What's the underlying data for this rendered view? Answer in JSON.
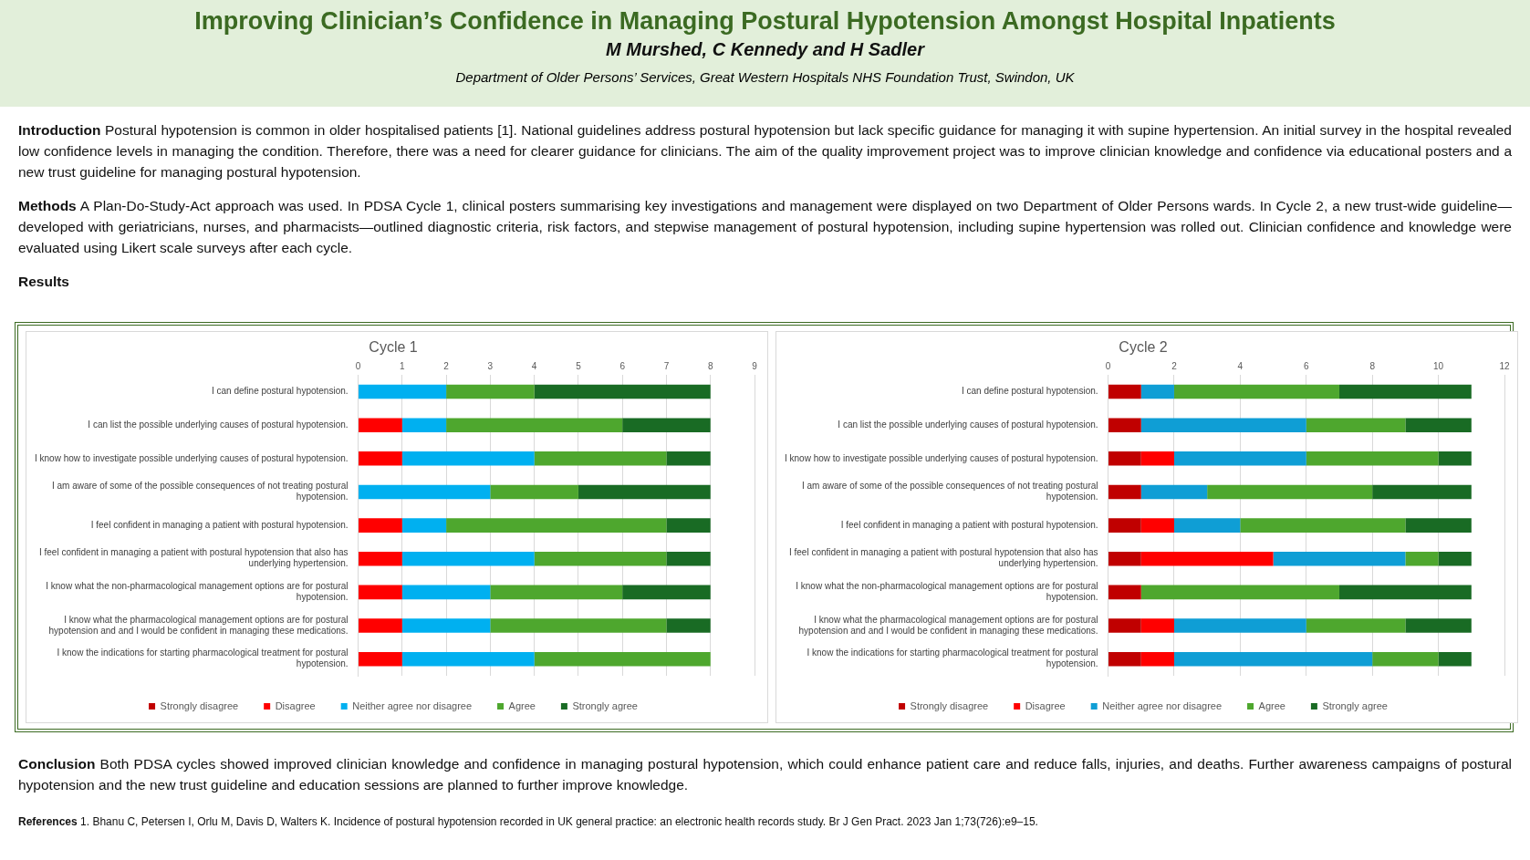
{
  "chart_data": [
    {
      "type": "other",
      "title": "Improving Clinician’s Confidence in Managing Postural Hypotension Amongst Hospital Inpatients",
      "subtitle": "M Murshed, C Kennedy and H Sadler",
      "annotations": [
        "Department of Older Persons’ Services, Great Western Hospitals NHS Foundation Trust, Swindon, UK",
        "Introduction Postural hypotension is common in older hospitalised patients [1]. National guidelines address postural hypotension but lack specific guidance for managing it with supine hypertension. An initial survey in the hospital revealed low confidence levels in managing the condition. Therefore, there was a need for clearer guidance for clinicians. The aim of the quality improvement project was to improve clinician knowledge and confidence via educational posters and a new trust guideline for managing postural hypotension.",
        "Methods A Plan-Do-Study-Act approach was used. In PDSA Cycle 1, clinical posters summarising key investigations and management were displayed on two Department of Older Persons wards. In Cycle 2, a new trust-wide guideline—developed with geriatricians, nurses, and pharmacists—outlined diagnostic criteria, risk factors, and stepwise management of postural hypotension, including supine hypertension was rolled out. Clinician confidence and knowledge were evaluated using Likert scale surveys after each cycle.",
        "Results"
      ]
    },
    {
      "type": "bar",
      "title": "Cycle 1",
      "orientation": "horizontal",
      "stacked": true,
      "grid": "x",
      "legend": "bottom",
      "categories": [
        "I can define postural hypotension.",
        "I can list the possible underlying causes of postural hypotension.",
        "I know how to investigate possible underlying causes of postural hypotension.",
        "I am aware of some of the possible consequences of not treating postural hypotension.",
        "I feel confident in managing a patient with postural hypotension.",
        "I feel confident in managing a patient with postural hypotension that also has underlying hypertension.",
        "I know what the non-pharmacological management options are for postural hypotension.",
        "I know what the pharmacological management options are for postural hypotension and and I would be confident in managing these medications.",
        "I know the indications for starting pharmacological treatment for postural hypotension."
      ],
      "xlim": [
        0,
        9
      ],
      "xticks": [
        0,
        1,
        2,
        3,
        4,
        5,
        6,
        7,
        8,
        9
      ],
      "series": [
        {
          "name": "Strongly disagree",
          "color": "#c00000",
          "values": [
            0,
            0,
            0,
            0,
            0,
            0,
            0,
            0,
            0
          ]
        },
        {
          "name": "Disagree",
          "color": "#ff0000",
          "values": [
            0,
            1,
            1,
            0,
            1,
            1,
            1,
            1,
            1
          ]
        },
        {
          "name": "Neither agree nor disagree",
          "color": "#00b0f0",
          "values": [
            2,
            1,
            3,
            3,
            1,
            3,
            2,
            2,
            3
          ]
        },
        {
          "name": "Agree",
          "color": "#4ea72e",
          "values": [
            2,
            4,
            3,
            2,
            5,
            3,
            3,
            4,
            4
          ]
        },
        {
          "name": "Strongly agree",
          "color": "#196b24",
          "values": [
            4,
            2,
            1,
            3,
            1,
            1,
            2,
            1,
            0
          ]
        }
      ]
    },
    {
      "type": "bar",
      "title": "Cycle 2",
      "orientation": "horizontal",
      "stacked": true,
      "grid": "x",
      "legend": "bottom",
      "categories": [
        "I can define postural hypotension.",
        "I can list the possible underlying causes of postural hypotension.",
        "I know how to investigate possible underlying causes of postural hypotension.",
        "I am aware of some of the possible consequences of not treating postural hypotension.",
        "I feel confident in managing a patient with postural hypotension.",
        "I feel confident in managing a patient with postural hypotension that also has underlying hypertension.",
        "I know what the non-pharmacological management options are for postural hypotension.",
        "I know what the pharmacological management options are for postural hypotension and and I would be confident in managing these medications.",
        "I know the indications for starting pharmacological treatment for postural hypotension."
      ],
      "xlim": [
        0,
        12
      ],
      "xticks": [
        0,
        2,
        4,
        6,
        8,
        10,
        12
      ],
      "series": [
        {
          "name": "Strongly disagree",
          "color": "#c00000",
          "values": [
            1,
            1,
            1,
            1,
            1,
            1,
            1,
            1,
            1
          ]
        },
        {
          "name": "Disagree",
          "color": "#ff0000",
          "values": [
            0,
            0,
            1,
            0,
            1,
            4,
            0,
            1,
            1
          ]
        },
        {
          "name": "Neither agree nor disagree",
          "color": "#0f9ed5",
          "values": [
            1,
            5,
            4,
            2,
            2,
            4,
            0,
            4,
            6
          ]
        },
        {
          "name": "Agree",
          "color": "#4ea72e",
          "values": [
            5,
            3,
            4,
            5,
            5,
            1,
            6,
            3,
            2
          ]
        },
        {
          "name": "Strongly agree",
          "color": "#196b24",
          "values": [
            4,
            2,
            1,
            3,
            2,
            1,
            4,
            2,
            1
          ]
        }
      ]
    },
    {
      "type": "other",
      "annotations": [
        "Conclusion Both PDSA cycles showed improved clinician knowledge and confidence in managing postural hypotension, which could enhance patient care and reduce falls, injuries, and deaths. Further awareness campaigns of postural hypotension and the new trust guideline and education sessions are planned to further improve knowledge.",
        "References 1. Bhanu C, Petersen I, Orlu M, Davis D, Walters K. Incidence of postural hypotension recorded in UK general practice: an electronic health records study. Br J Gen Pract. 2023 Jan 1;73(726):e9–15."
      ]
    }
  ]
}
